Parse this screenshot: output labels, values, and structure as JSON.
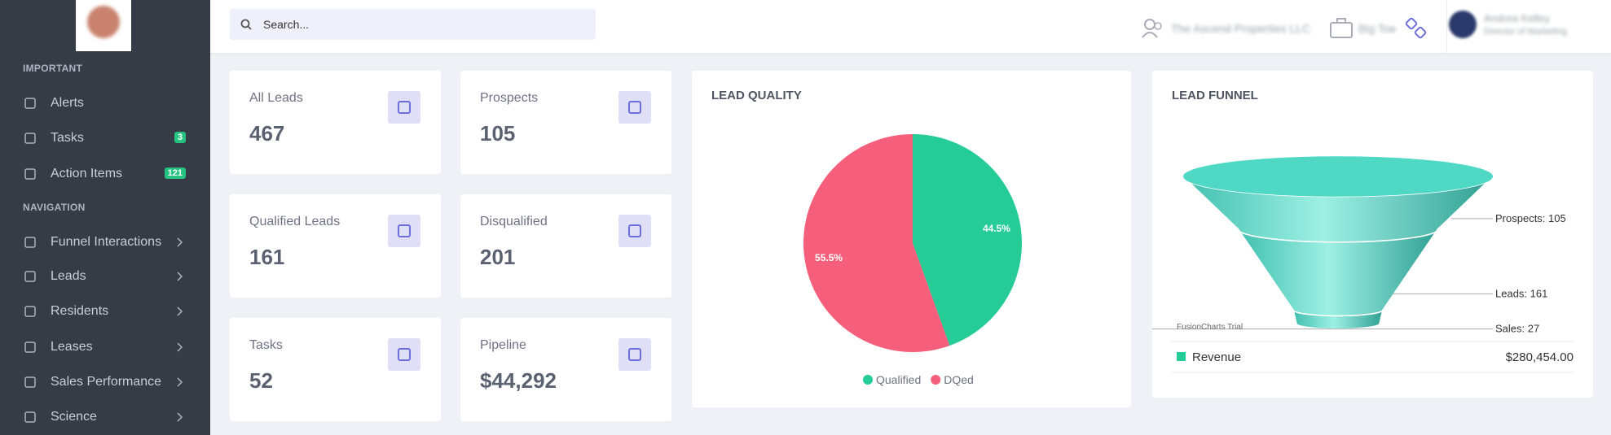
{
  "sidebar": {
    "sections": [
      {
        "title": "IMPORTANT",
        "items": [
          {
            "label": "Alerts"
          },
          {
            "label": "Tasks",
            "badge": "3"
          },
          {
            "label": "Action Items",
            "badge": "121"
          }
        ]
      },
      {
        "title": "NAVIGATION",
        "items": [
          {
            "label": "Funnel Interactions"
          },
          {
            "label": "Leads"
          },
          {
            "label": "Residents"
          },
          {
            "label": "Leases"
          },
          {
            "label": "Sales Performance"
          },
          {
            "label": "Science"
          }
        ]
      }
    ]
  },
  "header": {
    "search_placeholder": "Search...",
    "company": "The Ascend Properties LLC",
    "team": "Big Toe",
    "user_name": "Andrea Kelley",
    "user_role": "Director of Marketing"
  },
  "cards": [
    {
      "label": "All Leads",
      "value": "467"
    },
    {
      "label": "Prospects",
      "value": "105"
    },
    {
      "label": "Qualified Leads",
      "value": "161"
    },
    {
      "label": "Disqualified",
      "value": "201"
    },
    {
      "label": "Tasks",
      "value": "52"
    },
    {
      "label": "Pipeline",
      "value": "$44,292"
    }
  ],
  "lead_quality": {
    "type": "pie",
    "title": "LEAD QUALITY",
    "categories": [
      "Qualified",
      "DQed"
    ],
    "values": [
      44.5,
      55.5
    ],
    "value_labels": [
      "44.5%",
      "55.5%"
    ],
    "colors": [
      "#26cc96",
      "#f55f7b"
    ]
  },
  "lead_funnel": {
    "type": "funnel",
    "title": "LEAD FUNNEL",
    "categories": [
      "Prospects",
      "Leads",
      "Sales"
    ],
    "values": [
      105,
      161,
      27
    ],
    "value_labels": [
      "Prospects: 105",
      "Leads: 161",
      "Sales: 27"
    ],
    "color": "#4fd8c4",
    "watermark": "FusionCharts Trial",
    "summary": {
      "label": "Revenue",
      "value": "$280,454.00"
    }
  }
}
